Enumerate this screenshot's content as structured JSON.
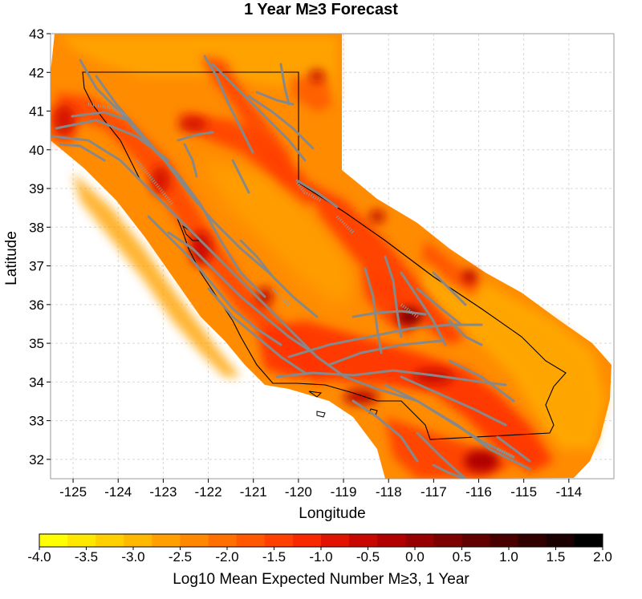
{
  "title": "1 Year M≥3 Forecast",
  "x_axis": {
    "label": "Longitude",
    "ticks": [
      "-125",
      "-124",
      "-123",
      "-122",
      "-121",
      "-120",
      "-119",
      "-118",
      "-117",
      "-116",
      "-115",
      "-114"
    ]
  },
  "y_axis": {
    "label": "Latitude",
    "ticks": [
      "32",
      "33",
      "34",
      "35",
      "36",
      "37",
      "38",
      "39",
      "40",
      "41",
      "42",
      "43"
    ]
  },
  "colorbar": {
    "label": "Log10 Mean Expected Number M≥3, 1 Year",
    "ticks": [
      "-4.0",
      "-3.5",
      "-3.0",
      "-2.5",
      "-2.0",
      "-1.5",
      "-1.0",
      "-0.5",
      "0.0",
      "0.5",
      "1.0",
      "1.5",
      "2.0"
    ],
    "range": [
      -4.0,
      2.0
    ],
    "colors": [
      "#ffff00",
      "#ffe800",
      "#ffcf00",
      "#ffb800",
      "#ffa000",
      "#ff8800",
      "#ff7000",
      "#ff5800",
      "#ff4000",
      "#f82800",
      "#e01400",
      "#c80800",
      "#b00000",
      "#960000",
      "#7c0000",
      "#620000",
      "#480000",
      "#300000",
      "#1a0000",
      "#000000"
    ]
  },
  "map": {
    "extent": {
      "lon": [
        -125.5,
        -113
      ],
      "lat": [
        31.5,
        43
      ]
    },
    "grid": true,
    "fault_color": "#888888",
    "boundary_color": "#000000"
  }
}
